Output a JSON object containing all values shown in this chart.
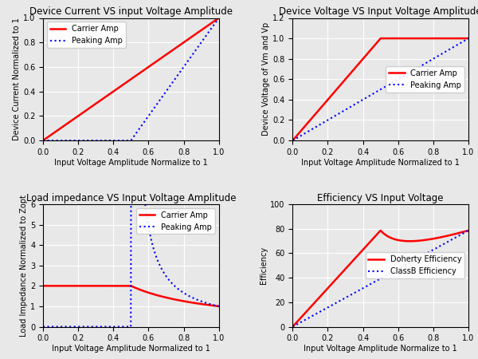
{
  "fig_width": 6.0,
  "fig_height": 4.5,
  "background_color": "#e8e8e8",
  "carrier_color": "red",
  "peaking_color": "blue",
  "carrier_lw": 1.8,
  "peaking_lw": 1.5,
  "title_fontsize": 8.5,
  "label_fontsize": 7.0,
  "tick_fontsize": 7.0,
  "legend_fontsize": 7.0,
  "plot1": {
    "title": "Device Current VS input Voltage Amplitude",
    "xlabel": "Input Voltage Amplitude Normalize to 1",
    "ylabel": "Device Current Normalized to 1",
    "xlim": [
      0,
      1
    ],
    "ylim": [
      0,
      1
    ],
    "yticks": [
      0.0,
      0.2,
      0.4,
      0.6,
      0.8,
      1.0
    ],
    "legend1": "Carrier Amp",
    "legend2": "Peaking Amp"
  },
  "plot2": {
    "title": "Device Voltage VS Input Voltage Amplitude",
    "xlabel": "Input Voltage Amplitude Normalized to 1",
    "ylabel": "Device Voltage of Vm and Vp",
    "xlim": [
      0,
      1
    ],
    "ylim": [
      0,
      1.2
    ],
    "yticks": [
      0.0,
      0.2,
      0.4,
      0.6,
      0.8,
      1.0,
      1.2
    ],
    "legend1": "Carrier Amp",
    "legend2": "Peaking Amp"
  },
  "plot3": {
    "title": "Load impedance VS Input Voltage Amplitude",
    "xlabel": "Input Voltage Amplitude Normalized to 1",
    "ylabel": "Load Impedance Normalized to Zopt",
    "xlim": [
      0,
      1
    ],
    "ylim": [
      0,
      6
    ],
    "yticks": [
      0,
      1,
      2,
      3,
      4,
      5,
      6
    ],
    "legend1": "Carrier Amp",
    "legend2": "Peaking Amp"
  },
  "plot4": {
    "title": "Efficiency VS Input Voltage",
    "xlabel": "Input Voltage Amplitude Normalize to 1",
    "ylabel": "Efficiency",
    "xlim": [
      0,
      1
    ],
    "ylim": [
      0,
      100
    ],
    "yticks": [
      0,
      20,
      40,
      60,
      80,
      100
    ],
    "legend1": "Doherty Efficiency",
    "legend2": "ClassB Efficiency"
  }
}
